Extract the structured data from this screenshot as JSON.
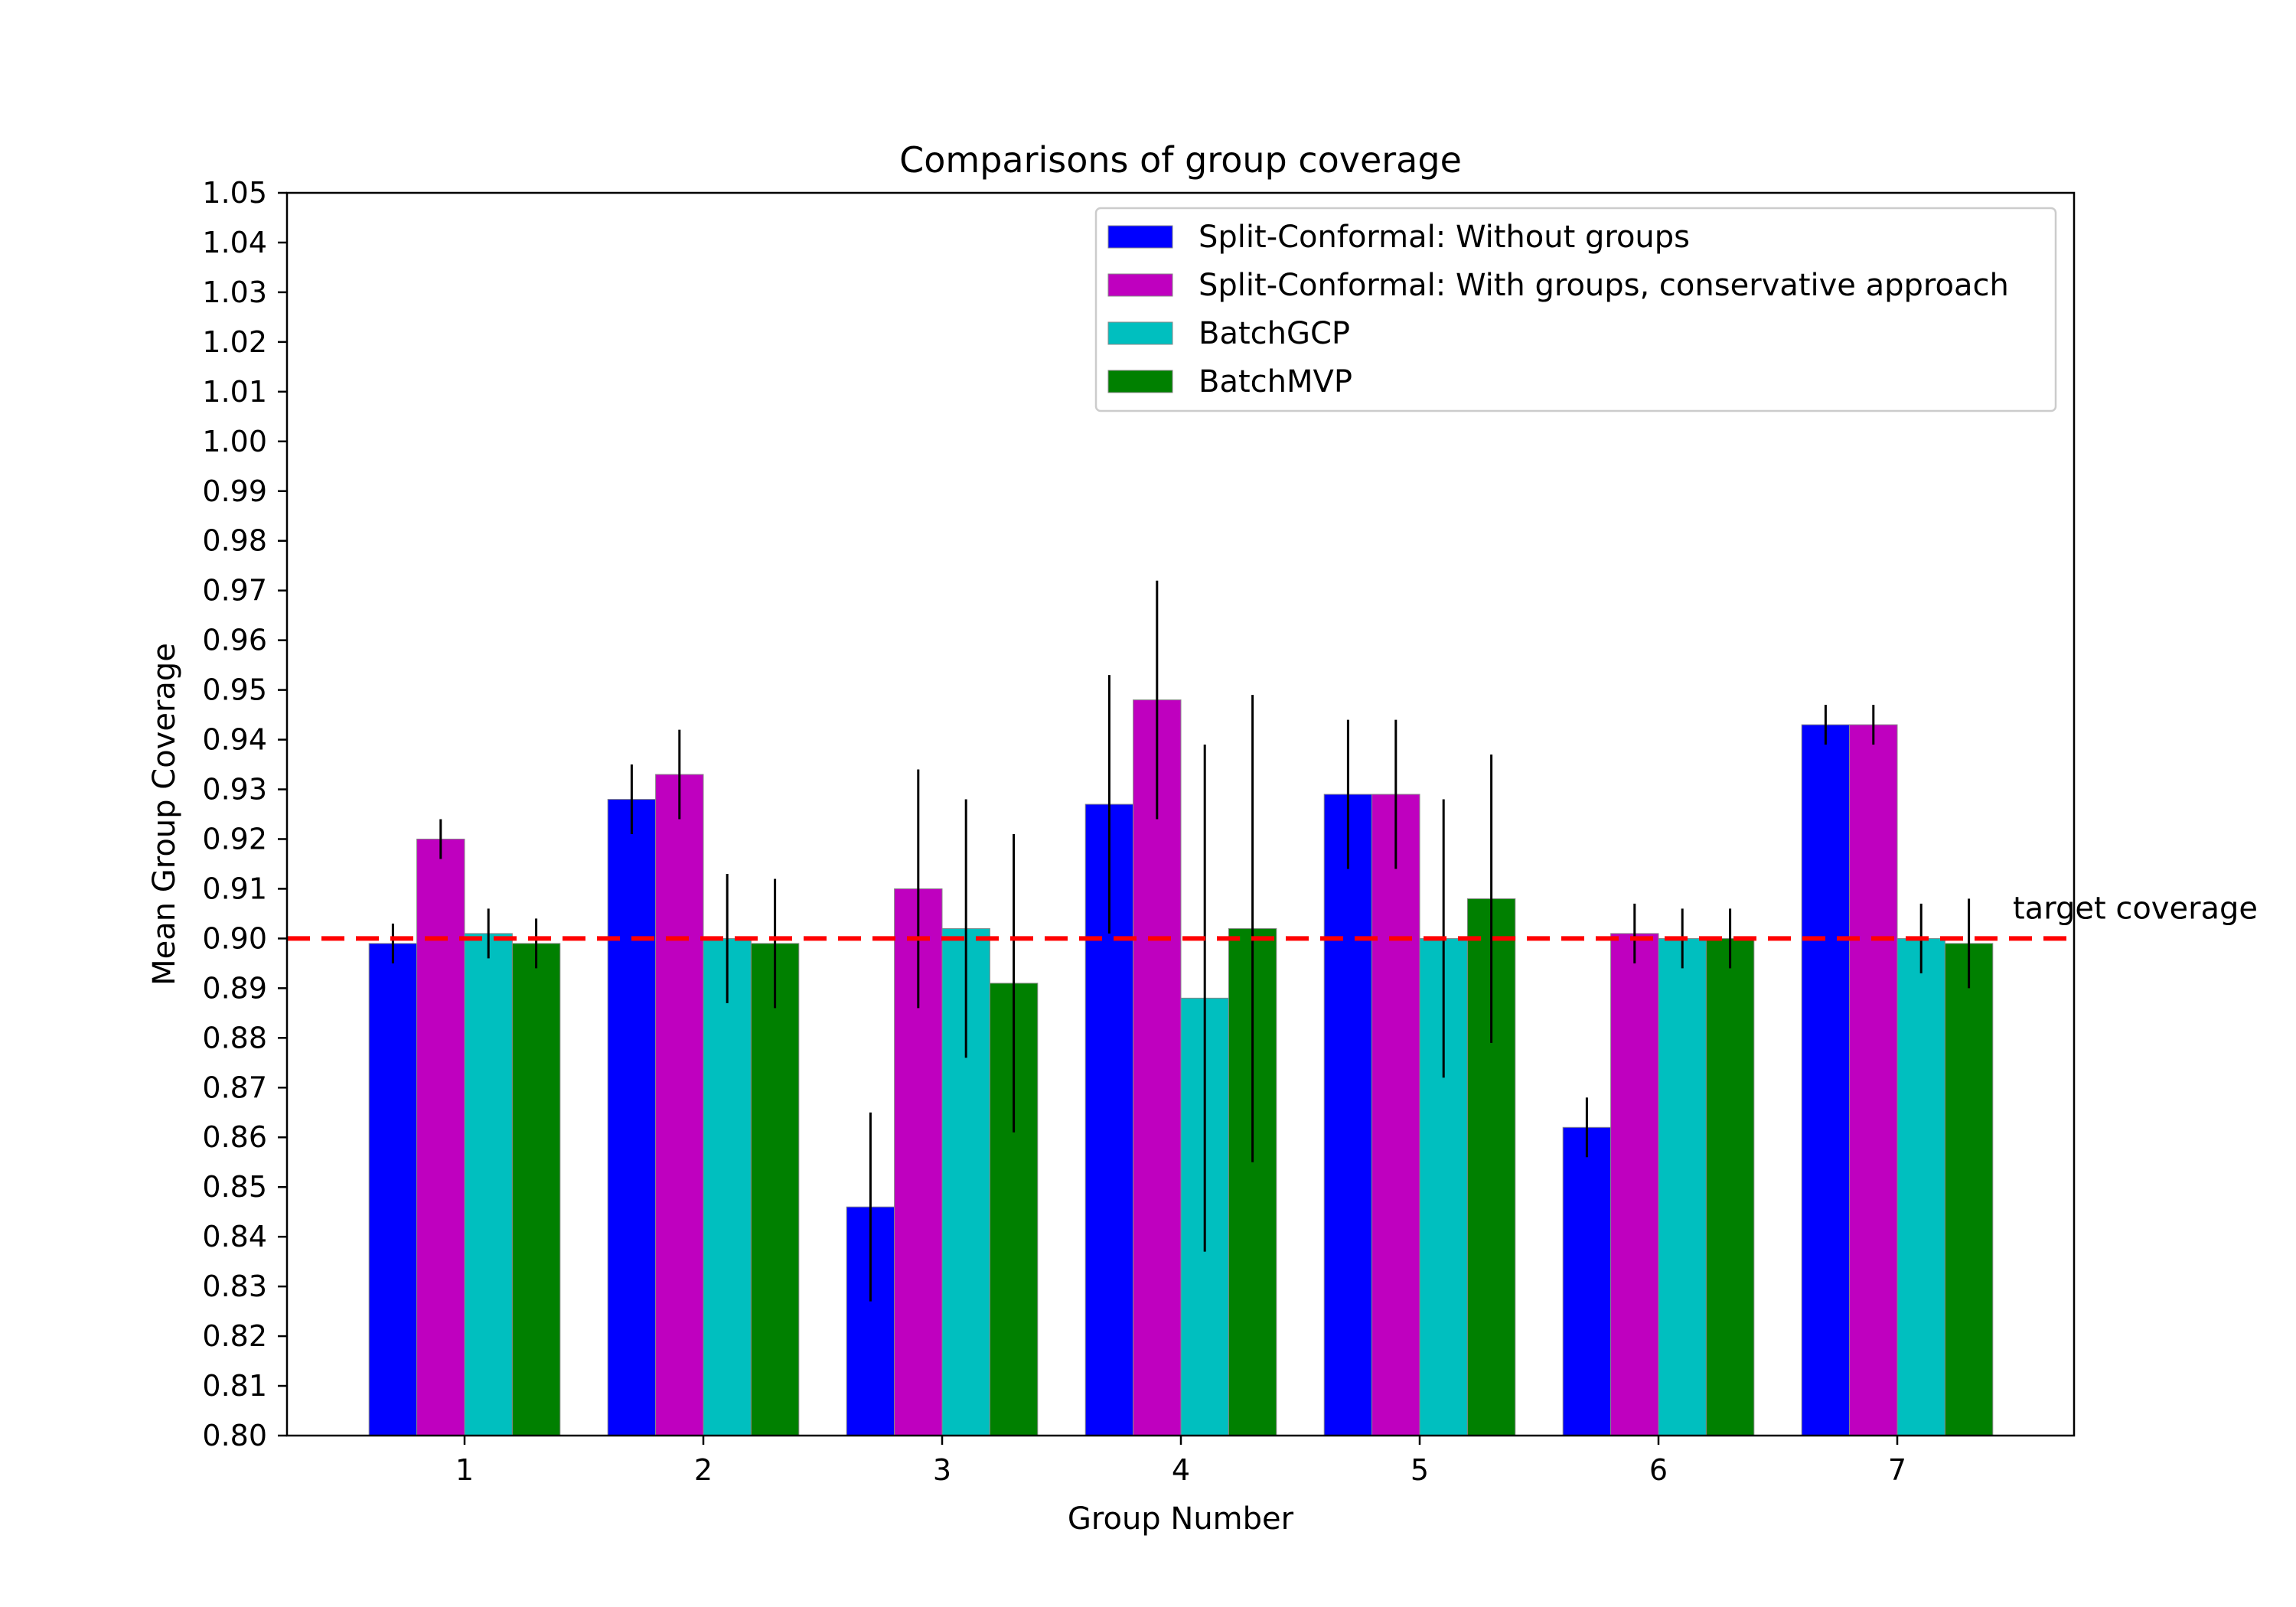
{
  "chart_data": {
    "type": "bar",
    "title": "Comparisons of group coverage",
    "xlabel": "Group Number",
    "ylabel": "Mean Group Coverage",
    "ylim": [
      0.8,
      1.05
    ],
    "yticks": [
      "0.80",
      "0.81",
      "0.82",
      "0.83",
      "0.84",
      "0.85",
      "0.86",
      "0.87",
      "0.88",
      "0.89",
      "0.90",
      "0.91",
      "0.92",
      "0.93",
      "0.94",
      "0.95",
      "0.96",
      "0.97",
      "0.98",
      "0.99",
      "1.00",
      "1.01",
      "1.02",
      "1.03",
      "1.04",
      "1.05"
    ],
    "categories": [
      "1",
      "2",
      "3",
      "4",
      "5",
      "6",
      "7"
    ],
    "series": [
      {
        "name": "Split-Conformal: Without groups",
        "color": "#0000ff",
        "values": [
          0.899,
          0.928,
          0.846,
          0.927,
          0.929,
          0.862,
          0.943
        ],
        "errors": [
          0.004,
          0.007,
          0.019,
          0.026,
          0.015,
          0.006,
          0.004
        ]
      },
      {
        "name": "Split-Conformal: With groups, conservative approach",
        "color": "#bf00bf",
        "values": [
          0.92,
          0.933,
          0.91,
          0.948,
          0.929,
          0.901,
          0.943
        ],
        "errors": [
          0.004,
          0.009,
          0.024,
          0.024,
          0.015,
          0.006,
          0.004
        ]
      },
      {
        "name": "BatchGCP",
        "color": "#00bfbf",
        "values": [
          0.901,
          0.9,
          0.902,
          0.888,
          0.9,
          0.9,
          0.9
        ],
        "errors": [
          0.005,
          0.013,
          0.026,
          0.051,
          0.028,
          0.006,
          0.007
        ]
      },
      {
        "name": "BatchMVP",
        "color": "#008000",
        "values": [
          0.899,
          0.899,
          0.891,
          0.902,
          0.908,
          0.9,
          0.899
        ],
        "errors": [
          0.005,
          0.013,
          0.03,
          0.047,
          0.029,
          0.006,
          0.009
        ]
      }
    ],
    "reference_line": {
      "value": 0.9,
      "label": "target coverage",
      "color": "#ff0000",
      "style": "dashed"
    },
    "legend_position": "upper right",
    "grid": false
  }
}
